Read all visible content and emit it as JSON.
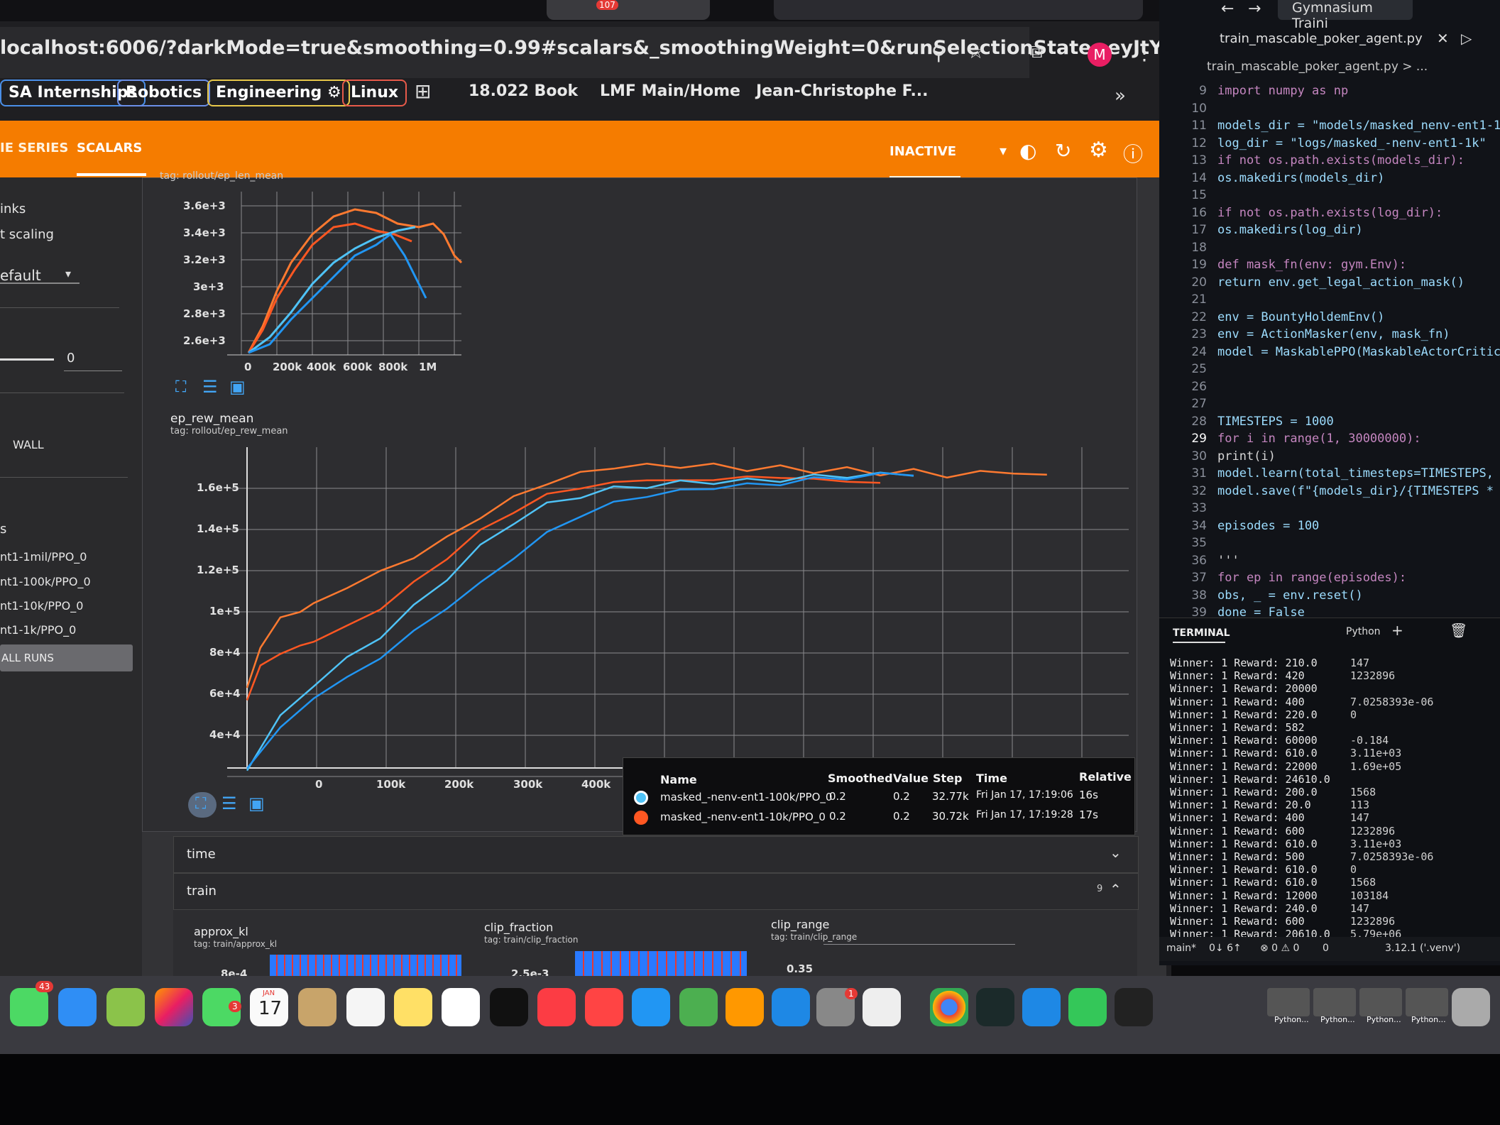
{
  "browser": {
    "url": "localhost:6006/?darkMode=true&smoothing=0.99#scalars&_smoothingWeight=0&runSelectionState=eyJtYXNrZ...",
    "avatar_letter": "M",
    "tab_badge": "107",
    "bookmarks": [
      {
        "label": "SA Internships",
        "color": "#4a8fe8"
      },
      {
        "label": "Robotics",
        "color": "#6b8fe8"
      },
      {
        "label": "Engineering ⚙",
        "color": "#e8c84a"
      },
      {
        "label": "Linux",
        "color": "#e85a4a"
      },
      {
        "label": "18.022 Book"
      },
      {
        "label": "LMF Main/Home"
      },
      {
        "label": "Jean-Christophe F..."
      }
    ]
  },
  "tensorboard": {
    "tabs": [
      "IE SERIES",
      "SCALARS"
    ],
    "status": "INACTIVE",
    "accent": "#f57c00",
    "sidebar": {
      "items": [
        "inks",
        "t scaling",
        "efault",
        "0",
        "WALL",
        "s"
      ],
      "runs": [
        "nt1-1mil/PPO_0",
        "nt1-100k/PPO_0",
        "nt1-10k/PPO_0",
        "nt1-1k/PPO_0"
      ],
      "all_runs_button": "ALL RUNS"
    },
    "top_chart": {
      "tag_partial": "tag: rollout/ep_len_mean",
      "y_ticks": [
        "3.6e+3",
        "3.4e+3",
        "3.2e+3",
        "3e+3",
        "2.8e+3",
        "2.6e+3"
      ],
      "x_ticks": [
        "0",
        "200k",
        "400k",
        "600k",
        "800k",
        "1M"
      ]
    },
    "main_chart": {
      "title": "ep_rew_mean",
      "tag": "tag: rollout/ep_rew_mean",
      "y_ticks": [
        "1.6e+5",
        "1.4e+5",
        "1.2e+5",
        "1e+5",
        "8e+4",
        "6e+4",
        "4e+4"
      ],
      "x_ticks": [
        "0",
        "100k",
        "200k",
        "300k",
        "400k"
      ]
    },
    "legend": {
      "headers": [
        "Name",
        "Smoothed",
        "Value",
        "Step",
        "Time",
        "Relative"
      ],
      "rows": [
        {
          "color": "#4fc3f7",
          "name": "masked_-nenv-ent1-100k/PPO_0",
          "smoothed": "0.2",
          "value": "0.2",
          "step": "32.77k",
          "time": "Fri Jan 17, 17:19:06",
          "relative": "16s"
        },
        {
          "color": "#ff5722",
          "name": "masked_-nenv-ent1-10k/PPO_0",
          "smoothed": "0.2",
          "value": "0.2",
          "step": "30.72k",
          "time": "Fri Jan 17, 17:19:28",
          "relative": "17s"
        }
      ]
    },
    "sections": [
      {
        "label": "time"
      },
      {
        "label": "train",
        "count": "9"
      }
    ],
    "train_charts": [
      {
        "title": "approx_kl",
        "tag": "tag: train/approx_kl",
        "tick": "8e-4"
      },
      {
        "title": "clip_fraction",
        "tag": "tag: train/clip_fraction",
        "tick": "2.5e-3"
      },
      {
        "title": "clip_range",
        "tag": "tag: train/clip_range",
        "tick": "0.35"
      }
    ]
  },
  "chart_data": {
    "type": "line",
    "title": "ep_rew_mean",
    "xlabel": "",
    "ylabel": "",
    "x_range": [
      0,
      1200000
    ],
    "y_range": [
      20000,
      180000
    ],
    "series": [
      {
        "color": "#ff7a30",
        "x": [
          0,
          20000,
          50000,
          80000,
          100000,
          150000,
          200000,
          250000,
          300000,
          350000,
          400000,
          450000,
          500000,
          550000,
          600000,
          650000,
          700000,
          750000,
          800000,
          850000,
          900000,
          950000,
          1000000,
          1050000,
          1100000,
          1150000,
          1200000
        ],
        "y": [
          60000,
          80000,
          95000,
          98000,
          102000,
          110000,
          118000,
          125000,
          135000,
          145000,
          155000,
          162000,
          167000,
          170000,
          171000,
          170500,
          171000,
          169000,
          170000,
          168000,
          169000,
          167000,
          168000,
          166000,
          167000,
          168000,
          165000
        ]
      },
      {
        "color": "#ff5722",
        "x": [
          0,
          20000,
          50000,
          80000,
          100000,
          150000,
          200000,
          250000,
          300000,
          350000,
          400000,
          450000,
          500000,
          550000,
          600000,
          650000,
          700000,
          750000,
          800000,
          850000,
          900000,
          950000
        ],
        "y": [
          55000,
          70000,
          78000,
          80000,
          84000,
          90000,
          100000,
          112000,
          125000,
          138000,
          148000,
          156000,
          160000,
          162000,
          164000,
          163000,
          164000,
          165000,
          165000,
          164000,
          163000,
          162000
        ]
      },
      {
        "color": "#4fc3f7",
        "x": [
          0,
          50000,
          100000,
          150000,
          200000,
          250000,
          300000,
          350000,
          400000,
          450000,
          500000,
          550000,
          600000,
          650000,
          700000,
          750000,
          800000,
          850000,
          900000,
          950000,
          1000000
        ],
        "y": [
          20000,
          45000,
          62000,
          74000,
          86000,
          100000,
          115000,
          130000,
          143000,
          151000,
          156000,
          159000,
          161000,
          162000,
          163000,
          163000,
          164000,
          165000,
          166000,
          166000,
          167000
        ]
      },
      {
        "color": "#2196f3",
        "x": [
          0,
          50000,
          100000,
          150000,
          200000,
          250000,
          300000,
          350000,
          400000,
          450000,
          500000,
          550000,
          600000,
          650000,
          700000,
          750000,
          800000,
          850000,
          900000,
          950000,
          1000000
        ],
        "y": [
          20000,
          40000,
          55000,
          65000,
          75000,
          88000,
          100000,
          112000,
          125000,
          137000,
          146000,
          152000,
          156000,
          158000,
          160000,
          161000,
          162000,
          164000,
          165000,
          166000,
          167000
        ]
      }
    ]
  },
  "vscode": {
    "title": "Gymnasium Traini",
    "tab": "train_mascable_poker_agent.py",
    "breadcrumb": "train_mascable_poker_agent.py > ...",
    "lines": [
      {
        "n": "9",
        "t": "import numpy as np"
      },
      {
        "n": "10",
        "t": ""
      },
      {
        "n": "11",
        "t": "models_dir = \"models/masked_nenv-ent1-1k"
      },
      {
        "n": "12",
        "t": "log_dir = \"logs/masked_-nenv-ent1-1k\""
      },
      {
        "n": "13",
        "t": "if not os.path.exists(models_dir):"
      },
      {
        "n": "14",
        "t": "    os.makedirs(models_dir)"
      },
      {
        "n": "15",
        "t": ""
      },
      {
        "n": "16",
        "t": "if not os.path.exists(log_dir):"
      },
      {
        "n": "17",
        "t": "    os.makedirs(log_dir)"
      },
      {
        "n": "18",
        "t": ""
      },
      {
        "n": "19",
        "t": "def mask_fn(env: gym.Env):"
      },
      {
        "n": "20",
        "t": "    return env.get_legal_action_mask()"
      },
      {
        "n": "21",
        "t": ""
      },
      {
        "n": "22",
        "t": "env = BountyHoldemEnv()"
      },
      {
        "n": "23",
        "t": "env = ActionMasker(env, mask_fn)"
      },
      {
        "n": "24",
        "t": "model = MaskablePPO(MaskableActorCriticPo"
      },
      {
        "n": "25",
        "t": ""
      },
      {
        "n": "26",
        "t": ""
      },
      {
        "n": "27",
        "t": ""
      },
      {
        "n": "28",
        "t": "TIMESTEPS = 1000"
      },
      {
        "n": "29",
        "t": "for i in range(1, 30000000):"
      },
      {
        "n": "30",
        "t": "    print(i)"
      },
      {
        "n": "31",
        "t": "    model.learn(total_timesteps=TIMESTEPS,"
      },
      {
        "n": "32",
        "t": "    model.save(f\"{models_dir}/{TIMESTEPS *"
      },
      {
        "n": "33",
        "t": ""
      },
      {
        "n": "34",
        "t": "episodes = 100"
      },
      {
        "n": "35",
        "t": ""
      },
      {
        "n": "36",
        "t": "'''"
      },
      {
        "n": "37",
        "t": "for ep in range(episodes):"
      },
      {
        "n": "38",
        "t": "    obs, _ = env.reset()"
      },
      {
        "n": "39",
        "t": "    done = False"
      }
    ],
    "terminal_tab": "TERMINAL",
    "terminal_shell": "Python",
    "terminal_lines": [
      "Winner: 1 Reward: 210.0",
      "Winner: 1 Reward: 420",
      "Winner: 1 Reward: 20000",
      "Winner: 1 Reward: 400",
      "Winner: 1 Reward: 220.0",
      "Winner: 1 Reward: 582",
      "Winner: 1 Reward: 60000",
      "Winner: 1 Reward: 610.0",
      "Winner: 1 Reward: 22000",
      "Winner: 1 Reward: 24610.0",
      "Winner: 1 Reward: 200.0",
      "Winner: 1 Reward: 20.0",
      "Winner: 1 Reward: 400",
      "Winner: 1 Reward: 600",
      "Winner: 1 Reward: 610.0",
      "Winner: 1 Reward: 500",
      "Winner: 1 Reward: 610.0",
      "Winner: 1 Reward: 610.0",
      "Winner: 1 Reward: 12000",
      "Winner: 1 Reward: 240.0",
      "Winner: 1 Reward: 600",
      "Winner: 1 Reward: 20610.0"
    ],
    "terminal_values": [
      "147",
      "1232896",
      "",
      "7.0258393e-06",
      "0",
      "",
      "-0.184",
      "3.11e+03",
      "1.69e+05",
      "",
      "1568",
      "113",
      "147",
      "1232896",
      "3.11e+03",
      "7.0258393e-06",
      "0",
      "1568",
      "103184",
      "147",
      "1232896",
      "5.79e+06"
    ],
    "statusbar": {
      "branch": "main*",
      "sync": "0↓ 6↑",
      "problems": "⊗ 0 ⚠ 0",
      "ports": "0",
      "python": "3.12.1 ('.venv')"
    }
  },
  "dock": {
    "badges": [
      "43",
      "3",
      "1"
    ],
    "calendar_month": "JAN",
    "calendar_day": "17",
    "labels": [
      "Python...",
      "Python...",
      "Python...",
      "Python..."
    ]
  }
}
